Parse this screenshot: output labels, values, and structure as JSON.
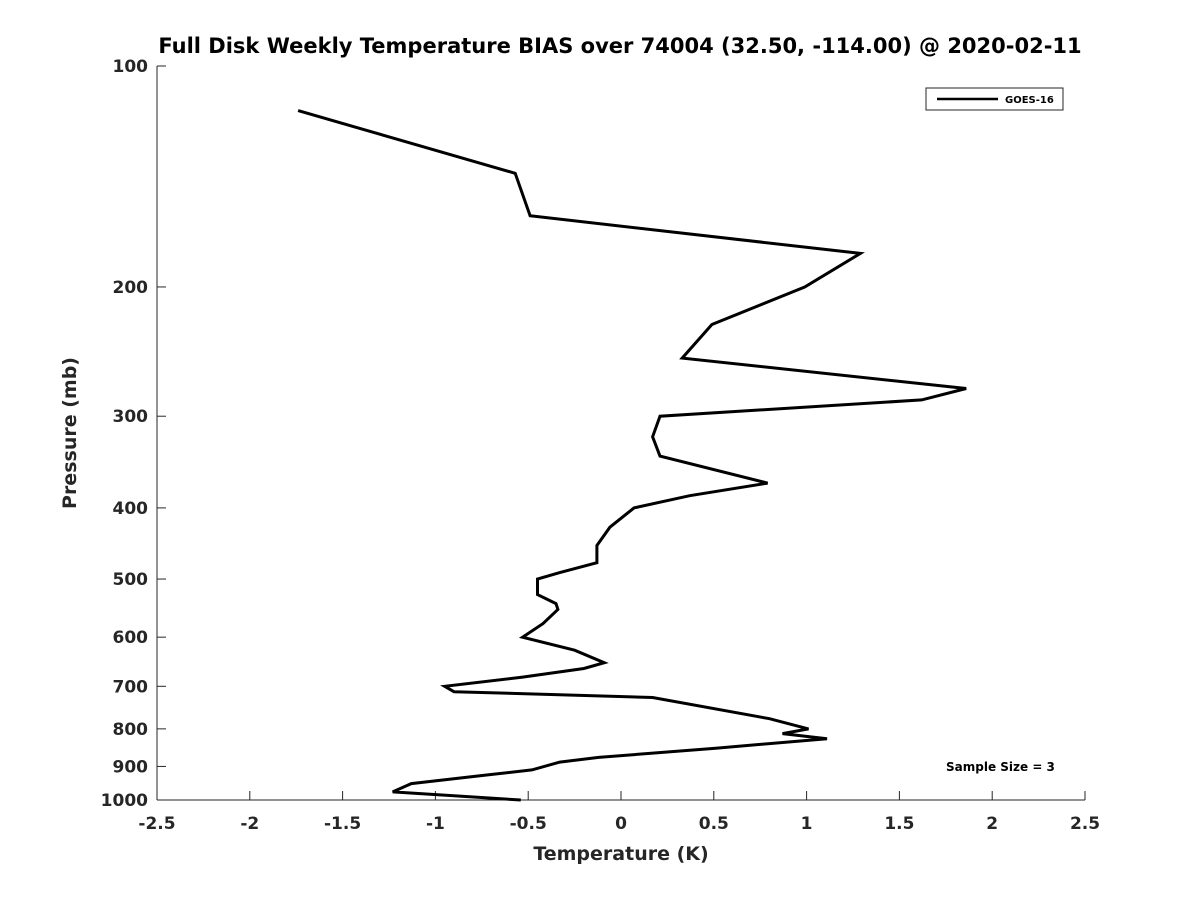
{
  "chart_data": {
    "type": "line",
    "title": "Full Disk Weekly Temperature BIAS over 74004 (32.50, -114.00) @ 2020-02-11",
    "xlabel": "Temperature (K)",
    "ylabel": "Pressure (mb)",
    "xlim": [
      -2.5,
      2.5
    ],
    "ylim": [
      100,
      1000
    ],
    "y_scale": "log",
    "y_reversed": true,
    "x_ticks": [
      "-2.5",
      "-2",
      "-1.5",
      "-1",
      "-0.5",
      "0",
      "0.5",
      "1",
      "1.5",
      "2",
      "2.5"
    ],
    "y_ticks": [
      "100",
      "200",
      "300",
      "400",
      "500",
      "600",
      "700",
      "800",
      "900",
      "1000"
    ],
    "grid": false,
    "legend_position": "top-right",
    "annotation": "Sample Size = 3",
    "series": [
      {
        "name": "GOES-16",
        "color": "#000000",
        "points": [
          {
            "x": -1.74,
            "p": 115
          },
          {
            "x": -0.57,
            "p": 140
          },
          {
            "x": -0.49,
            "p": 160
          },
          {
            "x": 1.29,
            "p": 180
          },
          {
            "x": 0.99,
            "p": 200
          },
          {
            "x": 0.49,
            "p": 225
          },
          {
            "x": 0.33,
            "p": 250
          },
          {
            "x": 1.86,
            "p": 275
          },
          {
            "x": 1.62,
            "p": 285
          },
          {
            "x": 0.21,
            "p": 300
          },
          {
            "x": 0.17,
            "p": 320
          },
          {
            "x": 0.21,
            "p": 340
          },
          {
            "x": 0.79,
            "p": 370
          },
          {
            "x": 0.37,
            "p": 385
          },
          {
            "x": 0.07,
            "p": 400
          },
          {
            "x": -0.06,
            "p": 425
          },
          {
            "x": -0.13,
            "p": 450
          },
          {
            "x": -0.13,
            "p": 475
          },
          {
            "x": -0.33,
            "p": 490
          },
          {
            "x": -0.45,
            "p": 500
          },
          {
            "x": -0.45,
            "p": 525
          },
          {
            "x": -0.35,
            "p": 540
          },
          {
            "x": -0.34,
            "p": 550
          },
          {
            "x": -0.42,
            "p": 575
          },
          {
            "x": -0.53,
            "p": 600
          },
          {
            "x": -0.25,
            "p": 625
          },
          {
            "x": -0.09,
            "p": 650
          },
          {
            "x": -0.2,
            "p": 662
          },
          {
            "x": -0.53,
            "p": 680
          },
          {
            "x": -0.95,
            "p": 700
          },
          {
            "x": -0.9,
            "p": 712
          },
          {
            "x": 0.17,
            "p": 725
          },
          {
            "x": 0.8,
            "p": 775
          },
          {
            "x": 1.01,
            "p": 800
          },
          {
            "x": 0.87,
            "p": 812
          },
          {
            "x": 1.11,
            "p": 825
          },
          {
            "x": 0.51,
            "p": 850
          },
          {
            "x": -0.12,
            "p": 875
          },
          {
            "x": -0.33,
            "p": 888
          },
          {
            "x": -0.48,
            "p": 910
          },
          {
            "x": -0.73,
            "p": 925
          },
          {
            "x": -1.13,
            "p": 950
          },
          {
            "x": -1.23,
            "p": 975
          },
          {
            "x": -0.54,
            "p": 1000
          }
        ]
      }
    ]
  }
}
